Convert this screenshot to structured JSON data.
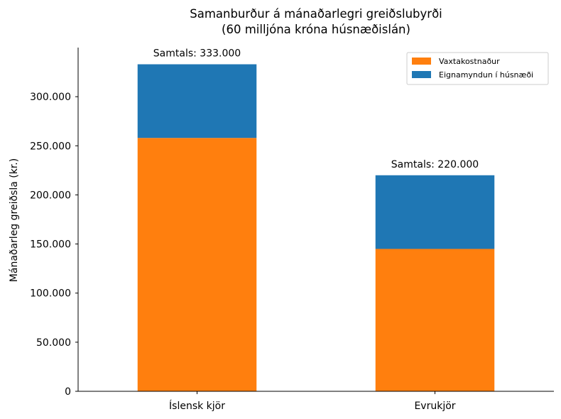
{
  "chart_data": {
    "type": "bar",
    "stacked": true,
    "title_line1": "Samanburður á mánaðarlegri greiðslubyrði",
    "title_line2": "(60 milljóna króna húsnæðislán)",
    "xlabel": "",
    "ylabel": "Mánaðarleg greiðsla (kr.)",
    "categories": [
      "Íslensk kjör",
      "Evrukjör"
    ],
    "series": [
      {
        "name": "Vaxtakostnaður",
        "color": "#ff7f0e",
        "values": [
          258000,
          145000
        ]
      },
      {
        "name": "Eignamyndun í húsnæði",
        "color": "#1f77b4",
        "values": [
          75000,
          75000
        ]
      }
    ],
    "totals": [
      "Samtals: 333.000",
      "Samtals: 220.000"
    ],
    "ylim": [
      0,
      350000
    ],
    "yticks": [
      0,
      50000,
      100000,
      150000,
      200000,
      250000,
      300000
    ],
    "ytick_labels": [
      "0",
      "50.000",
      "100.000",
      "150.000",
      "200.000",
      "250.000",
      "300.000"
    ],
    "grid": false,
    "legend_position": "top-right"
  }
}
